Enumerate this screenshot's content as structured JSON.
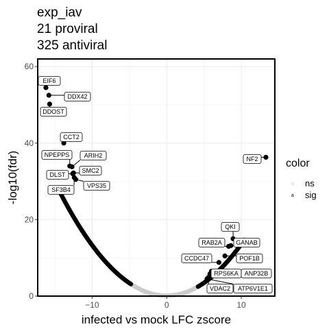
{
  "chart_data": {
    "type": "scatter",
    "title": [
      "exp_iav",
      "21 proviral",
      "325 antiviral"
    ],
    "xlabel": "infected vs mock LFC zscore",
    "ylabel": "-log10(fdr)",
    "xlim": [
      -17.3,
      14.5
    ],
    "ylim": [
      0,
      62
    ],
    "x_ticks": [
      -10,
      0,
      10
    ],
    "x_tick_labels": [
      "−10",
      "0",
      "10"
    ],
    "y_ticks": [
      0,
      20,
      40,
      60
    ],
    "y_tick_labels": [
      "0",
      "20",
      "40",
      "60"
    ],
    "grid": true,
    "legend": {
      "title": "color",
      "placement": "right",
      "entries": [
        {
          "name": "ns",
          "key": "a",
          "color": "#cccccc"
        },
        {
          "name": "sig",
          "key": "a",
          "color": "#000000"
        }
      ]
    },
    "colors": {
      "ns": "#cccccc",
      "sig": "#000000"
    },
    "curve": {
      "description": "bulk of points along volcano arms",
      "ns_range": [
        -4.8,
        4.2
      ],
      "sig_left_range": [
        -14.5,
        -4.8
      ],
      "sig_right_range": [
        4.2,
        10.4
      ]
    },
    "labeled_points": [
      {
        "name": "EIF6",
        "x": -16.2,
        "y": 54.5
      },
      {
        "name": "DDX42",
        "x": -15.8,
        "y": 52.5
      },
      {
        "name": "DDOST",
        "x": -15.7,
        "y": 50.2
      },
      {
        "name": "CCT2",
        "x": -13.8,
        "y": 40.0
      },
      {
        "name": "NPEPPS",
        "x": -13.0,
        "y": 34.0
      },
      {
        "name": "ARIH2",
        "x": -12.7,
        "y": 33.8
      },
      {
        "name": "SMC2",
        "x": -12.5,
        "y": 32.2
      },
      {
        "name": "DLST",
        "x": -12.6,
        "y": 32.0
      },
      {
        "name": "VPS35",
        "x": -12.2,
        "y": 30.5
      },
      {
        "name": "SF3B4",
        "x": -12.4,
        "y": 31.0
      },
      {
        "name": "NF2",
        "x": 13.3,
        "y": 36.3
      },
      {
        "name": "QKI",
        "x": 8.9,
        "y": 15.0
      },
      {
        "name": "RAB2A",
        "x": 8.3,
        "y": 13.0
      },
      {
        "name": "GANAB",
        "x": 8.6,
        "y": 13.2
      },
      {
        "name": "CCDC47",
        "x": 7.0,
        "y": 8.8
      },
      {
        "name": "POF1B",
        "x": 7.8,
        "y": 10.5
      },
      {
        "name": "RPS6KA",
        "x": 6.0,
        "y": 6.5
      },
      {
        "name": "ANP32B",
        "x": 5.8,
        "y": 5.8
      },
      {
        "name": "VDAC2",
        "x": 5.6,
        "y": 4.9
      },
      {
        "name": "ATP6V1E1",
        "x": 5.4,
        "y": 4.5
      }
    ]
  }
}
